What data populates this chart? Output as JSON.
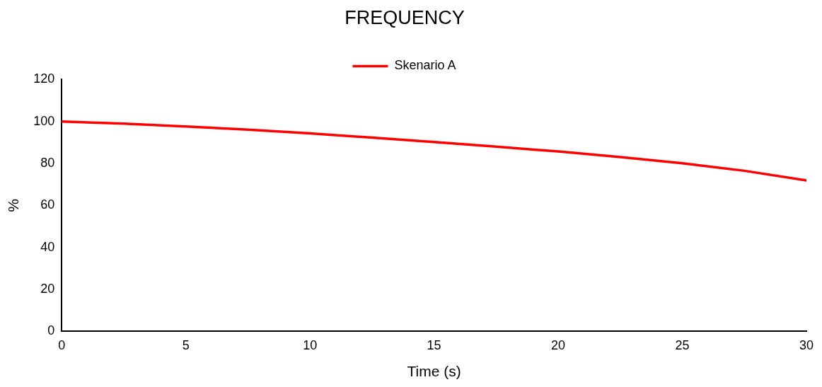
{
  "chart_data": {
    "type": "line",
    "title": "FREQUENCY",
    "xlabel": "Time (s)",
    "ylabel": "%",
    "series": [
      {
        "name": "Skenario A",
        "color": "#ff0000",
        "x": [
          0,
          2.5,
          5,
          7.5,
          10,
          12.5,
          15,
          17.5,
          20,
          22.5,
          25,
          27.5,
          30
        ],
        "values": [
          100,
          99,
          97.6,
          96.1,
          94.3,
          92.3,
          90.2,
          88,
          85.7,
          83,
          80.1,
          76.5,
          71.9
        ]
      }
    ],
    "xlim": [
      0,
      30
    ],
    "xticks": [
      0,
      5,
      10,
      15,
      20,
      25,
      30
    ],
    "ylim": [
      0,
      120
    ],
    "yticks": [
      0,
      20,
      40,
      60,
      80,
      100,
      120
    ],
    "grid": false,
    "legend": "top",
    "marker": "none",
    "line_style": "solid"
  }
}
